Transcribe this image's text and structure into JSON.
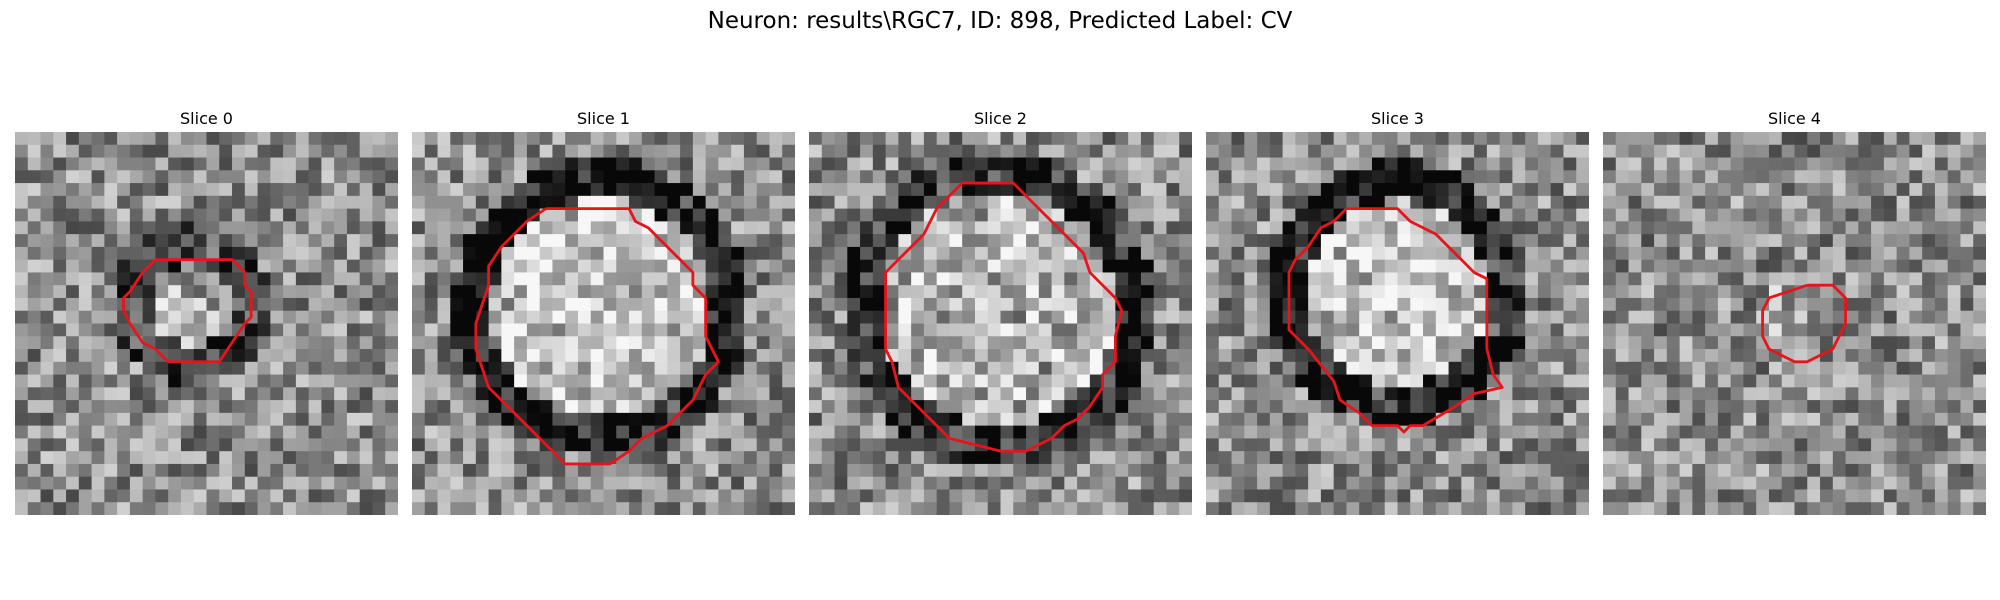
{
  "figure": {
    "title": "Neuron: results\\RGC7, ID: 898, Predicted Label: CV"
  },
  "panels": [
    {
      "title": "Slice 0"
    },
    {
      "title": "Slice 1"
    },
    {
      "title": "Slice 2"
    },
    {
      "title": "Slice 3"
    },
    {
      "title": "Slice 4"
    }
  ],
  "colors": {
    "contour": "#e8141c"
  }
}
